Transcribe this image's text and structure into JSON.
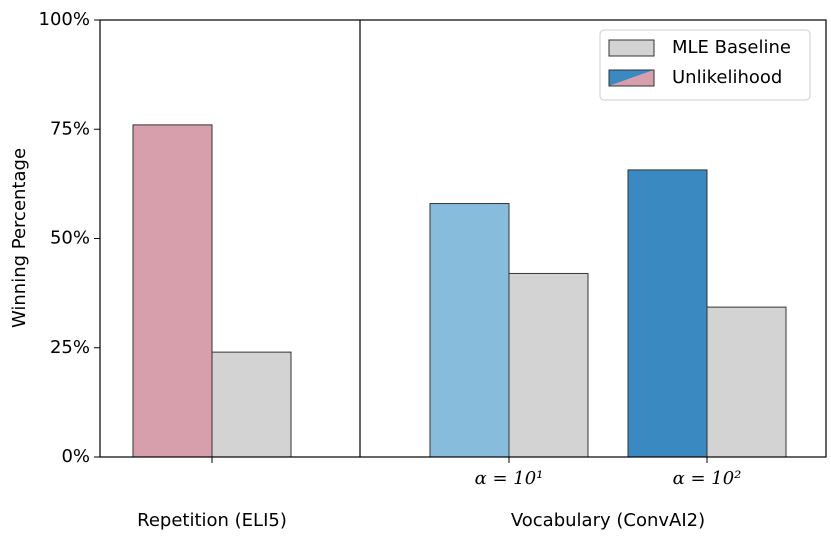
{
  "chart_data": {
    "type": "bar",
    "y_label": "Winning Percentage",
    "groups": [
      "Repetition (ELI5)",
      "Vocabulary (ConvAI2)"
    ],
    "categories": [
      null,
      "α = 10¹",
      "α = 10²"
    ],
    "series": [
      {
        "name": "Unlikelihood",
        "colors": [
          "#d69fab",
          "#88bcdc",
          "#3a89c1"
        ],
        "values": [
          76,
          58,
          65.7
        ]
      },
      {
        "name": "MLE Baseline",
        "color": "#d4d3d4",
        "values": [
          24,
          42,
          34.3
        ]
      }
    ],
    "ylim": [
      0,
      100
    ],
    "yticks": [
      {
        "value": 0,
        "label": "0%"
      },
      {
        "value": 25,
        "label": "25%"
      },
      {
        "value": 50,
        "label": "50%"
      },
      {
        "value": 75,
        "label": "75%"
      },
      {
        "value": 100,
        "label": "100%"
      }
    ],
    "legend": "upper right"
  }
}
